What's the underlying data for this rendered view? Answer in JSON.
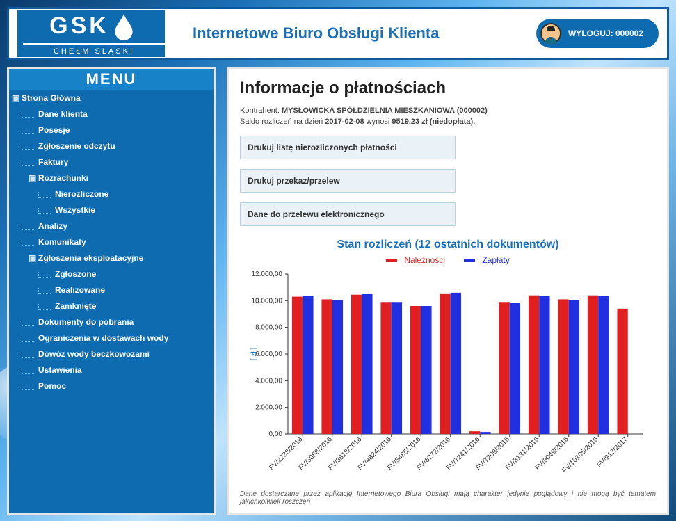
{
  "brand": {
    "top": "GSK",
    "bottom": "CHEŁM ŚLĄSKI"
  },
  "app_title": "Internetowe Biuro Obsługi Klienta",
  "logout_label": "WYLOGUJ: 000002",
  "menu": {
    "title": "MENU",
    "items": {
      "home": "Strona Główna",
      "dane": "Dane klienta",
      "posesje": "Posesje",
      "zgodczytu": "Zgłoszenie odczytu",
      "faktury": "Faktury",
      "rozrachunki": "Rozrachunki",
      "nierozliczone": "Nierozliczone",
      "wszystkie": "Wszystkie",
      "analizy": "Analizy",
      "komunikaty": "Komunikaty",
      "zgekspl": "Zgłoszenia eksploatacyjne",
      "zgloszone": "Zgłoszone",
      "realizowane": "Realizowane",
      "zamkniete": "Zamknięte",
      "dokumenty": "Dokumenty do pobrania",
      "ograniczenia": "Ograniczenia w dostawach wody",
      "dowoz": "Dowóz wody beczkowozami",
      "ustawienia": "Ustawienia",
      "pomoc": "Pomoc"
    }
  },
  "content": {
    "title": "Informacje o płatnościach",
    "contractor_label": "Kontrahent:",
    "contractor_value": "MYSŁOWICKA SPÓŁDZIELNIA MIESZKANIOWA (000002)",
    "balance_prefix": "Saldo rozliczeń na dzień",
    "balance_date": "2017-02-08",
    "balance_mid": "wynosi",
    "balance_amount": "9519,23 zł (niedopłata).",
    "btn1": "Drukuj listę nierozliczonych płatności",
    "btn2": "Drukuj przekaz/przelew",
    "btn3": "Dane do przelewu elektronicznego",
    "disclaimer": "Dane dostarczane przez aplikację Internetowego Biura Obsługi mają charakter jedynie poglądowy i nie mogą być tematem jakichkolwiek roszczeń"
  },
  "chart": {
    "title": "Stan rozliczeń (12 ostatnich dokumentów)",
    "legend": {
      "naleznosci": "Należności",
      "zaplaty": "Zapłaty"
    },
    "type": "bar",
    "y_label": "[ zł ]",
    "y_ticks": [
      "0,00",
      "2.000,00",
      "4.000,00",
      "6.000,00",
      "8.000,00",
      "10.000,00",
      "12.000,00"
    ],
    "ylim": [
      0,
      12000
    ],
    "categories": [
      "FV/2238/2016",
      "FV/3058/2016",
      "FV/3818/2016",
      "FV/4824/2016",
      "FV/5485/2016",
      "FV/6272/2016",
      "FV/7241/2016",
      "FV/7209/2016",
      "FV/8131/2016",
      "FV/9049/2016",
      "FV/10105/2016",
      "FV/917/2017"
    ],
    "series": {
      "naleznosci": {
        "color": "#e02020",
        "values": [
          10300,
          10100,
          10450,
          9900,
          9600,
          10550,
          200,
          9900,
          10400,
          10100,
          10400,
          9400
        ]
      },
      "zaplaty": {
        "color": "#2030e0",
        "values": [
          10350,
          10050,
          10500,
          9900,
          9600,
          10600,
          150,
          9850,
          10350,
          10050,
          10350,
          0
        ]
      }
    },
    "axis_color": "#333333",
    "grid": false,
    "background_color": "#ffffff",
    "bar_width": 0.36,
    "label_fontsize": 10
  }
}
